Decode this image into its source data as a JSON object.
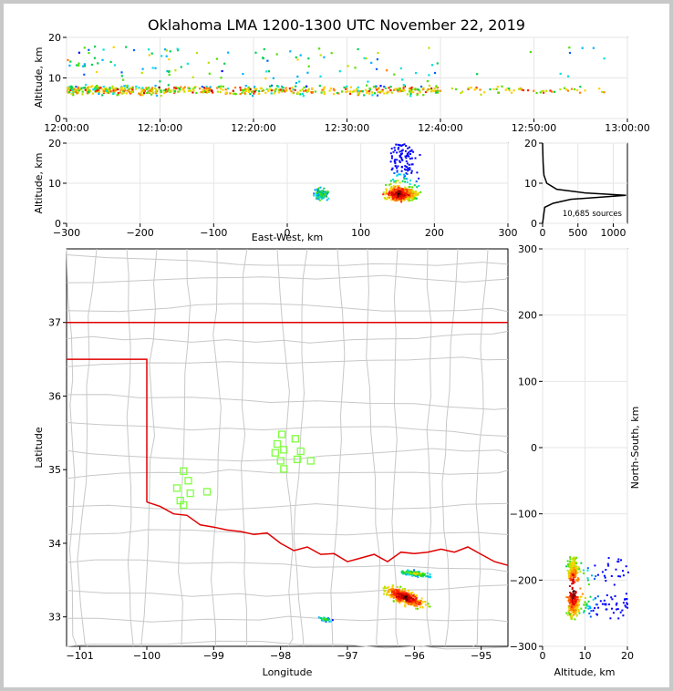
{
  "title": "Oklahoma LMA 1200-1300 UTC November 22, 2019",
  "chart_data": [
    {
      "type": "scatter",
      "panel": "time-altitude",
      "ylabel": "Altitude, km",
      "ylim": [
        0,
        20
      ],
      "yticks": [
        "0",
        "10",
        "20"
      ],
      "xticks": [
        "12:00:00",
        "12:10:00",
        "12:20:00",
        "12:30:00",
        "12:40:00",
        "12:50:00",
        "13:00:00"
      ],
      "xlim_minutes": [
        0,
        60
      ],
      "activity_note_points": [
        [
          3,
          7.5
        ],
        [
          10,
          7
        ],
        [
          20,
          7.5
        ],
        [
          28,
          7.5
        ],
        [
          35,
          7
        ],
        [
          42,
          6.5
        ],
        [
          53,
          7.5
        ]
      ]
    },
    {
      "type": "scatter",
      "panel": "east-west-altitude",
      "xlabel": "East-West, km",
      "ylabel": "Altitude, km",
      "xlim": [
        -300,
        300
      ],
      "ylim": [
        0,
        20
      ],
      "xticks": [
        "−300",
        "−200",
        "−100",
        "0",
        "100",
        "200",
        "300"
      ],
      "yticks": [
        "0",
        "10",
        "20"
      ],
      "clusters": [
        [
          45,
          7
        ],
        [
          155,
          7.5
        ]
      ]
    },
    {
      "type": "line",
      "panel": "altitude-histogram",
      "xlim": [
        0,
        1200
      ],
      "ylim": [
        0,
        20
      ],
      "xticks": [
        "0",
        "500",
        "1000"
      ],
      "yticks": [
        "0",
        "10",
        "20"
      ],
      "annotation": "10,685 sources",
      "points": [
        [
          0,
          0
        ],
        [
          30,
          4
        ],
        [
          150,
          5
        ],
        [
          400,
          6
        ],
        [
          1180,
          7
        ],
        [
          600,
          7.6
        ],
        [
          200,
          8.5
        ],
        [
          60,
          10
        ],
        [
          20,
          12
        ],
        [
          8,
          15
        ],
        [
          3,
          18
        ],
        [
          0,
          20
        ]
      ]
    },
    {
      "type": "scatter",
      "panel": "plan-view-map",
      "xlabel": "Longitude",
      "ylabel": "Latitude",
      "xlim": [
        -101.2,
        -94.6
      ],
      "ylim": [
        32.6,
        38.0
      ],
      "xticks": [
        "−101",
        "−100",
        "−99",
        "−98",
        "−97",
        "−96",
        "−95"
      ],
      "yticks": [
        "33",
        "34",
        "35",
        "36",
        "37"
      ],
      "stations": [
        [
          -99.45,
          34.98
        ],
        [
          -99.38,
          34.85
        ],
        [
          -99.55,
          34.75
        ],
        [
          -99.35,
          34.68
        ],
        [
          -99.5,
          34.58
        ],
        [
          -99.45,
          34.52
        ],
        [
          -99.1,
          34.7
        ],
        [
          -97.98,
          35.48
        ],
        [
          -98.05,
          35.35
        ],
        [
          -97.78,
          35.42
        ],
        [
          -98.08,
          35.23
        ],
        [
          -97.95,
          35.27
        ],
        [
          -97.7,
          35.25
        ],
        [
          -97.55,
          35.12
        ],
        [
          -98.0,
          35.12
        ],
        [
          -97.75,
          35.14
        ],
        [
          -97.95,
          35.01
        ]
      ]
    },
    {
      "type": "scatter",
      "panel": "north-south-altitude",
      "xlabel": "Altitude, km",
      "ylabel": "North-South, km",
      "xlim": [
        0,
        20
      ],
      "ylim": [
        -300,
        300
      ],
      "xticks": [
        "0",
        "10",
        "20"
      ],
      "yticks": [
        "−300",
        "−200",
        "−100",
        "0",
        "100",
        "200",
        "300"
      ],
      "clusters": [
        [
          6,
          -185
        ],
        [
          7,
          -235
        ]
      ]
    }
  ]
}
